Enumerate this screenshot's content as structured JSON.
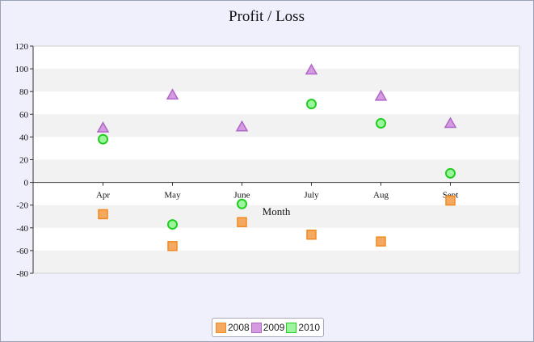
{
  "chart_data": {
    "type": "scatter",
    "title": "Profit / Loss",
    "xlabel": "Month",
    "ylabel": "",
    "categories": [
      "Apr",
      "May",
      "June",
      "July",
      "Aug",
      "Sept"
    ],
    "ylim": [
      -80,
      120
    ],
    "yticks": [
      120,
      100,
      80,
      60,
      40,
      20,
      0,
      -20,
      -40,
      -60,
      -80
    ],
    "grid": "alternating horizontal bands",
    "legend_position": "bottom-center",
    "series": [
      {
        "name": "2008",
        "marker": "square",
        "color": "#f5a860",
        "edge": "#f08a20",
        "values": [
          -28,
          -56,
          -35,
          -46,
          -52,
          -16
        ]
      },
      {
        "name": "2009",
        "marker": "triangle",
        "color": "#d59be0",
        "edge": "#b066c8",
        "values": [
          48,
          77,
          49,
          99,
          76,
          52
        ]
      },
      {
        "name": "2010",
        "marker": "circle",
        "color": "#9cf59c",
        "edge": "#1ecf1e",
        "values": [
          38,
          -37,
          -19,
          69,
          52,
          8
        ]
      }
    ]
  }
}
